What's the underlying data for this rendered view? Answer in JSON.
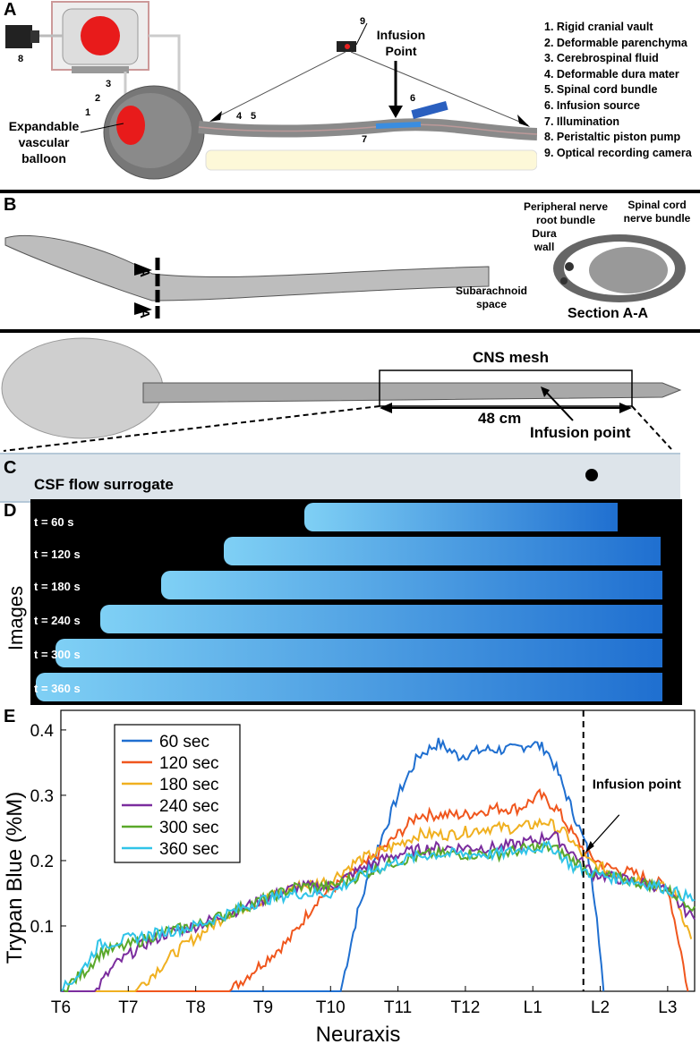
{
  "panels": {
    "a": "A",
    "b": "B",
    "c": "C",
    "d": "D",
    "e": "E"
  },
  "panelA": {
    "labels_num": [
      "1",
      "2",
      "3",
      "4",
      "5",
      "6",
      "7",
      "8",
      "9"
    ],
    "balloon_label": "Expandable vascular balloon",
    "infusion_label": "Infusion Point",
    "legend": [
      "1. Rigid cranial vault",
      "2. Deformable parenchyma",
      "3. Cerebrospinal fluid",
      "4. Deformable dura mater",
      "5. Spinal cord bundle",
      "6. Infusion source",
      "7. Illumination",
      "8. Peristaltic piston pump",
      "9. Optical recording camera"
    ]
  },
  "panelB": {
    "section_marker": "A",
    "peripheral": "Peripheral nerve root bundle",
    "spinal": "Spinal cord nerve bundle",
    "dura": "Dura wall",
    "subarachnoid": "Subarachnoid space",
    "section": "Section A-A",
    "cns_mesh": "CNS mesh",
    "length": "48 cm",
    "infusion_point": "Infusion point"
  },
  "panelC": {
    "label": "CSF flow surrogate"
  },
  "panelD": {
    "ylabel": "Images",
    "times": [
      "t = 60 s",
      "t = 120 s",
      "t = 180 s",
      "t = 240 s",
      "t = 300 s",
      "t = 360 s"
    ]
  },
  "chart_data": {
    "type": "line",
    "xlabel": "Neuraxis",
    "ylabel": "Trypan Blue (%M)",
    "categories": [
      "T6",
      "T7",
      "T8",
      "T9",
      "T10",
      "T11",
      "T12",
      "L1",
      "L2",
      "L3"
    ],
    "x_range": [
      0,
      9.4
    ],
    "ylim": [
      0,
      0.43
    ],
    "yticks": [
      "0.1",
      "0.2",
      "0.3",
      "0.4"
    ],
    "legend_position": "upper-left",
    "infusion_x": 7.75,
    "annotation": "Infusion point",
    "series": [
      {
        "name": "60 sec",
        "color": "#1f6fd0",
        "points": [
          [
            0,
            0
          ],
          [
            4.15,
            0
          ],
          [
            4.4,
            0.12
          ],
          [
            4.7,
            0.22
          ],
          [
            5.0,
            0.3
          ],
          [
            5.3,
            0.36
          ],
          [
            5.6,
            0.38
          ],
          [
            5.9,
            0.36
          ],
          [
            6.3,
            0.37
          ],
          [
            6.7,
            0.37
          ],
          [
            7.0,
            0.38
          ],
          [
            7.2,
            0.37
          ],
          [
            7.35,
            0.34
          ],
          [
            7.5,
            0.3
          ],
          [
            7.65,
            0.26
          ],
          [
            7.8,
            0.22
          ],
          [
            7.95,
            0.12
          ],
          [
            8.05,
            0
          ]
        ]
      },
      {
        "name": "120 sec",
        "color": "#f0561d",
        "points": [
          [
            0,
            0
          ],
          [
            2.5,
            0
          ],
          [
            3.4,
            0.08
          ],
          [
            3.8,
            0.14
          ],
          [
            4.2,
            0.17
          ],
          [
            4.6,
            0.2
          ],
          [
            5.0,
            0.24
          ],
          [
            5.3,
            0.27
          ],
          [
            5.6,
            0.27
          ],
          [
            6.0,
            0.27
          ],
          [
            6.4,
            0.28
          ],
          [
            6.8,
            0.28
          ],
          [
            7.1,
            0.3
          ],
          [
            7.35,
            0.28
          ],
          [
            7.6,
            0.24
          ],
          [
            7.8,
            0.21
          ],
          [
            8.1,
            0.19
          ],
          [
            8.5,
            0.18
          ],
          [
            9.0,
            0.16
          ],
          [
            9.2,
            0.06
          ],
          [
            9.3,
            0
          ]
        ]
      },
      {
        "name": "180 sec",
        "color": "#f0b020",
        "points": [
          [
            0,
            0
          ],
          [
            1.1,
            0
          ],
          [
            1.4,
            0.03
          ],
          [
            1.7,
            0.06
          ],
          [
            2.1,
            0.09
          ],
          [
            2.5,
            0.12
          ],
          [
            3.0,
            0.14
          ],
          [
            3.5,
            0.16
          ],
          [
            4.0,
            0.17
          ],
          [
            4.4,
            0.2
          ],
          [
            4.9,
            0.22
          ],
          [
            5.3,
            0.24
          ],
          [
            5.8,
            0.24
          ],
          [
            6.3,
            0.25
          ],
          [
            6.8,
            0.25
          ],
          [
            7.2,
            0.26
          ],
          [
            7.5,
            0.24
          ],
          [
            7.8,
            0.2
          ],
          [
            8.2,
            0.18
          ],
          [
            8.7,
            0.17
          ],
          [
            9.1,
            0.15
          ],
          [
            9.35,
            0.08
          ]
        ]
      },
      {
        "name": "240 sec",
        "color": "#7b2d9e",
        "points": [
          [
            0,
            0
          ],
          [
            0.5,
            0
          ],
          [
            0.8,
            0.04
          ],
          [
            1.2,
            0.07
          ],
          [
            1.6,
            0.09
          ],
          [
            2.0,
            0.1
          ],
          [
            2.5,
            0.12
          ],
          [
            3.0,
            0.14
          ],
          [
            3.5,
            0.16
          ],
          [
            4.0,
            0.16
          ],
          [
            4.5,
            0.19
          ],
          [
            5.0,
            0.21
          ],
          [
            5.5,
            0.22
          ],
          [
            6.0,
            0.22
          ],
          [
            6.5,
            0.22
          ],
          [
            7.0,
            0.23
          ],
          [
            7.3,
            0.24
          ],
          [
            7.6,
            0.21
          ],
          [
            7.9,
            0.18
          ],
          [
            8.4,
            0.17
          ],
          [
            8.9,
            0.16
          ],
          [
            9.4,
            0.11
          ]
        ]
      },
      {
        "name": "300 sec",
        "color": "#5aa82a",
        "points": [
          [
            0,
            0
          ],
          [
            0.35,
            0.03
          ],
          [
            0.6,
            0.06
          ],
          [
            1.0,
            0.07
          ],
          [
            1.5,
            0.09
          ],
          [
            2.0,
            0.1
          ],
          [
            2.5,
            0.12
          ],
          [
            3.0,
            0.14
          ],
          [
            3.5,
            0.16
          ],
          [
            4.0,
            0.16
          ],
          [
            4.5,
            0.18
          ],
          [
            5.0,
            0.2
          ],
          [
            5.5,
            0.21
          ],
          [
            6.0,
            0.21
          ],
          [
            6.5,
            0.21
          ],
          [
            7.0,
            0.22
          ],
          [
            7.3,
            0.22
          ],
          [
            7.6,
            0.2
          ],
          [
            7.9,
            0.18
          ],
          [
            8.4,
            0.17
          ],
          [
            8.9,
            0.16
          ],
          [
            9.4,
            0.13
          ]
        ]
      },
      {
        "name": "360 sec",
        "color": "#30c4e8",
        "points": [
          [
            0,
            0
          ],
          [
            0.3,
            0.03
          ],
          [
            0.55,
            0.07
          ],
          [
            1.0,
            0.08
          ],
          [
            1.5,
            0.09
          ],
          [
            2.0,
            0.1
          ],
          [
            2.5,
            0.12
          ],
          [
            3.0,
            0.14
          ],
          [
            3.5,
            0.15
          ],
          [
            4.0,
            0.15
          ],
          [
            4.5,
            0.18
          ],
          [
            5.0,
            0.2
          ],
          [
            5.5,
            0.21
          ],
          [
            6.0,
            0.21
          ],
          [
            6.5,
            0.21
          ],
          [
            7.0,
            0.22
          ],
          [
            7.3,
            0.22
          ],
          [
            7.6,
            0.19
          ],
          [
            7.9,
            0.18
          ],
          [
            8.4,
            0.17
          ],
          [
            8.9,
            0.16
          ],
          [
            9.4,
            0.14
          ]
        ]
      }
    ]
  }
}
